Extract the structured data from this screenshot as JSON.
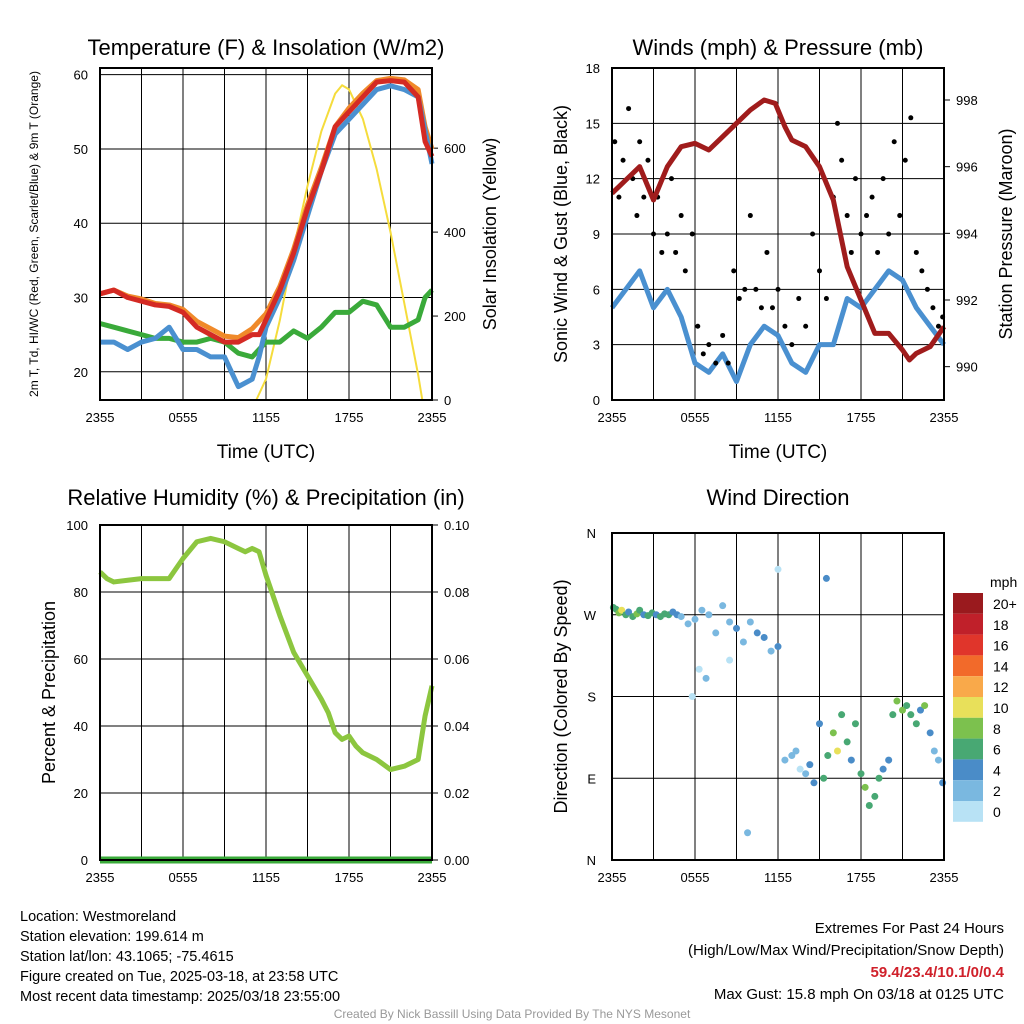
{
  "chart_data": [
    {
      "type": "line",
      "title": "Temperature (F) & Insolation (W/m2)",
      "xlabel": "Time (UTC)",
      "ylabel": "2m T, Td, HI/WC (Red, Green, Scarlet/Blue) & 9m T (Orange)",
      "y2label": "Solar Insolation (Yellow)",
      "xticks": [
        "2355",
        "0555",
        "1155",
        "1755",
        "2355"
      ],
      "yticks": [
        20,
        30,
        40,
        50,
        60
      ],
      "y2ticks": [
        0,
        200,
        400,
        600
      ],
      "ylim": [
        16.2,
        60.9
      ],
      "y2lim": [
        0,
        791
      ],
      "series": [
        {
          "name": "Solar Insolation",
          "axis": "y2",
          "color": "#f5dc3c",
          "x": [
            0,
            11.3,
            12,
            13,
            14,
            15,
            16,
            17,
            17.5,
            18,
            19,
            20,
            21,
            22,
            23,
            23.3,
            24
          ],
          "y": [
            0,
            0,
            50,
            190,
            360,
            510,
            640,
            730,
            750,
            740,
            670,
            550,
            400,
            230,
            60,
            0,
            0
          ]
        },
        {
          "name": "Dew Point",
          "color": "#3aaa3a",
          "x": [
            0,
            1,
            2,
            3,
            4,
            5,
            6,
            7,
            8,
            9,
            10,
            11,
            12,
            13,
            14,
            15,
            16,
            17,
            18,
            19,
            20,
            21,
            22,
            23,
            23.5,
            24
          ],
          "y": [
            26.5,
            26,
            25.5,
            25,
            24.5,
            24.5,
            24,
            24,
            24.5,
            24,
            22.5,
            22,
            24,
            24,
            25.5,
            24.5,
            26,
            28,
            28,
            29.5,
            29,
            26,
            26,
            27,
            30,
            31
          ]
        },
        {
          "name": "9m T",
          "color": "#f08a2a",
          "x": [
            0,
            1,
            2,
            3,
            4,
            5,
            6,
            7,
            8,
            9,
            10,
            11,
            12,
            13,
            14,
            15,
            16,
            17,
            18,
            19,
            20,
            21,
            22,
            23,
            23.5,
            24
          ],
          "y": [
            30.5,
            31,
            30.2,
            29.8,
            29.2,
            29,
            28.4,
            26.8,
            25.8,
            24.8,
            24.6,
            25.8,
            27.8,
            31.5,
            36.5,
            42.5,
            47.5,
            53,
            55.5,
            57.5,
            59.2,
            59.5,
            59.3,
            58,
            53,
            50
          ]
        },
        {
          "name": "HI/WC",
          "color": "#4a90d0",
          "x": [
            0,
            1,
            2,
            3,
            4,
            5,
            6,
            7,
            8,
            9,
            10,
            11,
            11.5,
            12,
            13,
            14,
            15,
            16,
            17,
            18,
            19,
            20,
            21,
            22,
            23,
            24
          ],
          "y": [
            24,
            24,
            23,
            24,
            24.5,
            26,
            23,
            23,
            22,
            22,
            18,
            19,
            22,
            26,
            30,
            35,
            41,
            47,
            52,
            54,
            56,
            58,
            58.5,
            58,
            57,
            48
          ]
        },
        {
          "name": "2m T",
          "color": "#d42a24",
          "x": [
            0,
            1,
            2,
            3,
            4,
            5,
            6,
            7,
            8,
            9,
            10,
            11,
            11.5,
            12,
            13,
            14,
            15,
            16,
            17,
            18,
            19,
            20,
            21,
            22,
            23,
            23.5,
            24
          ],
          "y": [
            30.5,
            31,
            30,
            29.5,
            29,
            28.8,
            28,
            26,
            25,
            24,
            24,
            25,
            25,
            27,
            31,
            36,
            42,
            47,
            53,
            55,
            57,
            59,
            59.2,
            59,
            57,
            51,
            49
          ]
        }
      ]
    },
    {
      "type": "line",
      "title": "Winds (mph) & Pressure (mb)",
      "xlabel": "Time (UTC)",
      "ylabel": "Sonic Wind & Gust (Blue, Black)",
      "y2label": "Station Pressure (Maroon)",
      "xticks": [
        "2355",
        "0555",
        "1155",
        "1755",
        "2355"
      ],
      "yticks": [
        0,
        3,
        6,
        9,
        12,
        15,
        18
      ],
      "y2ticks": [
        990,
        992,
        994,
        996,
        998
      ],
      "ylim": [
        0,
        18
      ],
      "y2lim": [
        989.0,
        998.96
      ],
      "series": [
        {
          "name": "Sonic Wind",
          "color": "#4a90d0",
          "x": [
            0,
            1,
            2,
            3,
            4,
            5,
            6,
            7,
            8,
            9,
            10,
            11,
            12,
            13,
            14,
            15,
            16,
            17,
            18,
            19,
            20,
            21,
            22,
            23,
            24
          ],
          "y": [
            5,
            6,
            7,
            5,
            6,
            4.5,
            2,
            1.5,
            2.5,
            1,
            3,
            4,
            3.5,
            2,
            1.5,
            3,
            3,
            5.5,
            5,
            6,
            7,
            6.5,
            5,
            4,
            3
          ]
        },
        {
          "name": "Gust",
          "type": "scatter",
          "color": "#000",
          "x": [
            0.2,
            0.5,
            0.8,
            1.2,
            1.5,
            1.8,
            2,
            2.3,
            2.6,
            3,
            3.3,
            3.6,
            4,
            4.3,
            4.6,
            5,
            5.3,
            5.8,
            6.2,
            6.6,
            7,
            7.5,
            8,
            8.4,
            8.8,
            9.2,
            9.6,
            10,
            10.4,
            10.8,
            11.2,
            11.6,
            12,
            12.5,
            13,
            13.5,
            14,
            14.5,
            15,
            15.5,
            16,
            16.3,
            16.6,
            17,
            17.3,
            17.6,
            18,
            18.4,
            18.8,
            19.2,
            19.6,
            20,
            20.4,
            20.8,
            21.2,
            21.6,
            22,
            22.4,
            22.8,
            23.2,
            23.6,
            23.9
          ],
          "y": [
            14,
            11,
            13,
            15.8,
            12,
            10,
            14,
            11,
            13,
            9,
            11,
            8,
            9,
            12,
            8,
            10,
            7,
            9,
            4,
            2.5,
            3,
            2,
            3.5,
            2,
            7,
            5.5,
            6,
            10,
            6,
            5,
            8,
            5,
            6,
            4,
            3,
            5.5,
            4,
            9,
            7,
            5.5,
            11,
            15,
            13,
            10,
            8,
            12,
            9,
            10,
            11,
            8,
            12,
            9,
            14,
            10,
            13,
            15.3,
            8,
            7,
            6,
            5,
            4,
            4.5
          ]
        },
        {
          "name": "Station Pressure",
          "axis": "y2",
          "color": "#a01c1c",
          "x": [
            0,
            1,
            2,
            3,
            4,
            5,
            6,
            7,
            8,
            9,
            10,
            11,
            11.8,
            12.5,
            13,
            14,
            15,
            16,
            17,
            17.5,
            18,
            19,
            20,
            21,
            21.5,
            22,
            23,
            24
          ],
          "y": [
            995.2,
            995.6,
            996,
            995,
            996,
            996.6,
            996.7,
            996.5,
            996.9,
            997.3,
            997.7,
            998,
            997.9,
            997.2,
            996.8,
            996.6,
            996,
            995,
            993,
            992.5,
            992,
            991,
            991,
            990.5,
            990.2,
            990.4,
            990.6,
            991.2
          ]
        }
      ]
    },
    {
      "type": "line",
      "title": "Relative Humidity (%) & Precipitation (in)",
      "ylabel": "Percent & Precipitation",
      "xticks": [
        "2355",
        "0555",
        "1155",
        "1755",
        "2355"
      ],
      "yticks": [
        0,
        20,
        40,
        60,
        80,
        100
      ],
      "y2ticks": [
        "0.00",
        "0.02",
        "0.04",
        "0.06",
        "0.08",
        "0.10"
      ],
      "ylim": [
        0,
        100
      ],
      "y2lim": [
        0,
        0.1
      ],
      "series": [
        {
          "name": "Precipitation",
          "axis": "y2",
          "color": "#3aaa3a",
          "x": [
            0,
            24
          ],
          "y": [
            0,
            0
          ]
        },
        {
          "name": "Relative Humidity",
          "color": "#8cc63f",
          "x": [
            0,
            0.5,
            1,
            2,
            3,
            4,
            5,
            6,
            7,
            8,
            9,
            10,
            10.5,
            11,
            11.5,
            12,
            13,
            14,
            15,
            16,
            16.5,
            17,
            17.5,
            18,
            18.5,
            19,
            20,
            21,
            22,
            23,
            23.5,
            24
          ],
          "y": [
            86,
            84,
            83,
            83.5,
            84,
            84,
            84,
            90,
            95,
            96,
            95,
            93,
            92,
            93,
            92,
            85,
            73,
            62,
            55,
            48,
            44,
            38,
            36,
            37,
            34,
            32,
            30,
            27,
            28,
            30,
            43,
            52
          ]
        }
      ]
    },
    {
      "type": "scatter",
      "title": "Wind Direction",
      "ylabel": "Direction (Colored By Speed)",
      "xticks": [
        "2355",
        "0555",
        "1155",
        "1755",
        "2355"
      ],
      "yticks": [
        "N",
        "E",
        "S",
        "W",
        "N"
      ],
      "ylim": [
        0,
        360
      ],
      "legend": {
        "title": "mph",
        "labels": [
          "20+",
          "18",
          "16",
          "14",
          "12",
          "10",
          "8",
          "6",
          "4",
          "2",
          "0"
        ],
        "colors": [
          "#9a1a1e",
          "#c0202a",
          "#e0352b",
          "#f26a2a",
          "#f9a94a",
          "#e8e05a",
          "#7cc14e",
          "#48a873",
          "#4a8cc8",
          "#7ab8e0",
          "#b8e2f5"
        ]
      },
      "points": {
        "x": [
          0.1,
          0.3,
          0.5,
          0.7,
          1,
          1.2,
          1.5,
          1.8,
          2,
          2.3,
          2.6,
          2.9,
          3.2,
          3.5,
          3.8,
          4.1,
          4.4,
          4.7,
          5,
          5.5,
          6,
          6.5,
          7,
          7.5,
          8,
          8.5,
          9,
          9.5,
          10,
          10.5,
          11,
          11.5,
          12,
          12.5,
          13,
          13.3,
          13.6,
          14,
          14.3,
          14.6,
          15,
          15.3,
          15.6,
          16,
          16.3,
          16.6,
          17,
          17.3,
          17.6,
          18,
          18.3,
          18.6,
          19,
          19.3,
          19.6,
          20,
          20.3,
          20.6,
          21,
          21.3,
          21.6,
          22,
          22.3,
          22.6,
          23,
          23.3,
          23.6,
          23.9,
          6.3,
          8.5,
          9.8,
          12,
          15.5,
          5.8,
          6.8
        ],
        "y": [
          278,
          276,
          272,
          275,
          270,
          273,
          268,
          271,
          275,
          270,
          269,
          272,
          270,
          268,
          271,
          270,
          273,
          270,
          268,
          260,
          265,
          275,
          270,
          250,
          280,
          262,
          255,
          240,
          262,
          250,
          245,
          230,
          235,
          110,
          115,
          120,
          100,
          95,
          105,
          85,
          150,
          90,
          115,
          140,
          120,
          160,
          130,
          110,
          150,
          95,
          80,
          60,
          70,
          90,
          100,
          110,
          160,
          175,
          165,
          170,
          160,
          150,
          165,
          170,
          140,
          120,
          110,
          85,
          210,
          220,
          30,
          320,
          310,
          180,
          200
        ],
        "speed": [
          6,
          7,
          8,
          10,
          6,
          5,
          7,
          8,
          6,
          5,
          6,
          7,
          5,
          6,
          7,
          6,
          5,
          4,
          3,
          2,
          2,
          3,
          2,
          3,
          2,
          3,
          4,
          3,
          2,
          4,
          4,
          3,
          4,
          2,
          3,
          2,
          1,
          2,
          4,
          5,
          5,
          7,
          6,
          8,
          10,
          7,
          6,
          5,
          7,
          6,
          8,
          6,
          7,
          6,
          5,
          5,
          7,
          9,
          8,
          6,
          7,
          6,
          5,
          8,
          4,
          3,
          2,
          4,
          1,
          1,
          2,
          1,
          4,
          1,
          2
        ]
      }
    }
  ],
  "info": {
    "lines": [
      "Location: Westmoreland",
      "Station elevation: 199.614 m",
      "Station lat/lon: 43.1065; -75.4615",
      "Figure created on Tue, 2025-03-18, at 23:58 UTC",
      "Most recent data timestamp: 2025/03/18 23:55:00"
    ]
  },
  "extremes": {
    "title": "Extremes For Past 24 Hours",
    "subtitle": "(High/Low/Max Wind/Precipitation/Snow Depth)",
    "values": "59.4/23.4/10.1/0/0.4",
    "gust": "Max Gust: 15.8 mph On 03/18 at 0125 UTC"
  },
  "credit": "Created By Nick Bassill Using Data Provided By The NYS Mesonet"
}
